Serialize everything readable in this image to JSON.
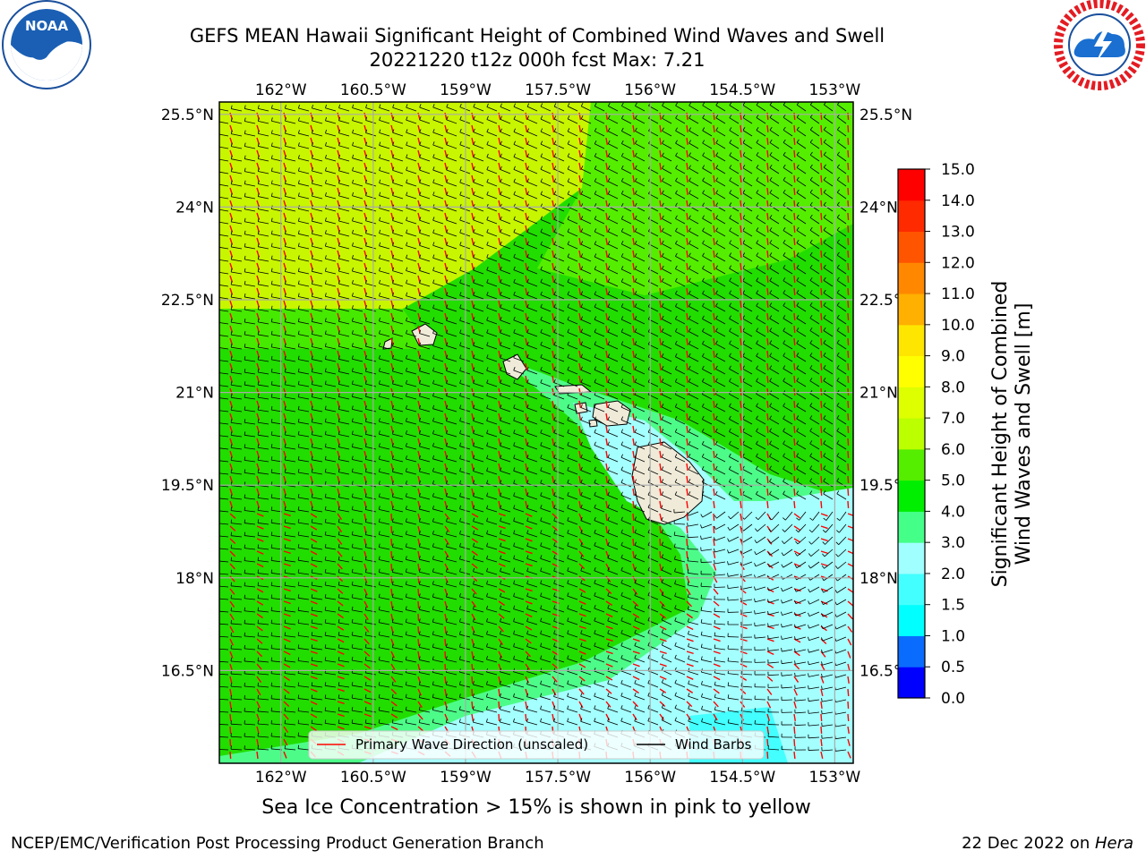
{
  "title": {
    "line1": "GEFS MEAN Hawaii Significant Height of Combined Wind Waves and Swell",
    "line2": "20221220 t12z 000h fcst   Max: 7.21"
  },
  "logos": {
    "left": "noaa-logo",
    "right": "national-weather-service-logo"
  },
  "map": {
    "lon_ticks": [
      "162°W",
      "160.5°W",
      "159°W",
      "157.5°W",
      "156°W",
      "154.5°W",
      "153°W"
    ],
    "lat_ticks": [
      "25.5°N",
      "24°N",
      "22.5°N",
      "21°N",
      "19.5°N",
      "18°N",
      "16.5°N"
    ],
    "lon_values": [
      -162,
      -160.5,
      -159,
      -157.5,
      -156,
      -154.5,
      -153
    ],
    "lat_values": [
      25.5,
      24,
      22.5,
      21,
      19.5,
      18,
      16.5
    ],
    "lon_range": [
      -163.0,
      -152.7
    ],
    "lat_range": [
      15.0,
      25.7
    ],
    "legend": {
      "wave_label": "Primary Wave Direction (unscaled)",
      "barb_label": "Wind Barbs",
      "wave_color": "#ff0000",
      "barb_color": "#000000"
    },
    "islands": [
      "Niihau",
      "Kauai",
      "Oahu",
      "Molokai",
      "Lanai",
      "Maui",
      "Kahoolawe",
      "Hawaii"
    ]
  },
  "colorbar": {
    "label_line1": "Significant Height of Combined",
    "label_line2": "Wind Waves and Swell [m]",
    "ticks": [
      "0.0",
      "0.5",
      "1.0",
      "1.5",
      "2.0",
      "3.0",
      "4.0",
      "5.0",
      "6.0",
      "7.0",
      "8.0",
      "9.0",
      "10.0",
      "11.0",
      "12.0",
      "13.0",
      "14.0",
      "15.0"
    ],
    "colors": [
      "#0000ff",
      "#0a6cff",
      "#00ffff",
      "#44ffff",
      "#a0ffff",
      "#44ff88",
      "#00ee00",
      "#55ee00",
      "#bbff00",
      "#ddff00",
      "#ffff00",
      "#ffe600",
      "#ffb000",
      "#ff8800",
      "#ff5500",
      "#ff2a00",
      "#ff0000"
    ]
  },
  "note": "Sea Ice Concentration > 15% is shown in pink to yellow",
  "footer": {
    "left": "NCEP/EMC/Verification Post Processing Product Generation Branch",
    "date": "22 Dec 2022 on ",
    "host": "Hera"
  }
}
